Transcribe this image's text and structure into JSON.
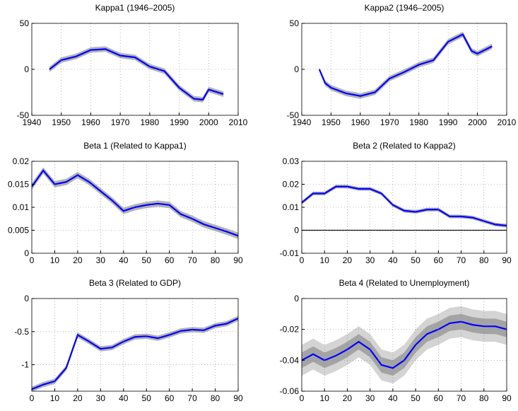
{
  "chart_data": [
    {
      "type": "line",
      "title": "Kappa1 (1946–2005)",
      "x": [
        1946,
        1950,
        1955,
        1960,
        1965,
        1970,
        1975,
        1980,
        1985,
        1990,
        1995,
        1998,
        2000,
        2005
      ],
      "series": [
        {
          "color": "#0000ff",
          "values": [
            0,
            10,
            14,
            21,
            22,
            15,
            13,
            3,
            -2,
            -20,
            -32,
            -33,
            -22,
            -27
          ]
        }
      ],
      "bands": [
        {
          "color": "#b4b4b4",
          "lower": [
            -3,
            7,
            11,
            18,
            19,
            12,
            10,
            0,
            -5,
            -23,
            -35,
            -36,
            -25,
            -30
          ],
          "upper": [
            3,
            13,
            17,
            24,
            25,
            18,
            16,
            6,
            1,
            -17,
            -29,
            -30,
            -19,
            -24
          ]
        }
      ],
      "xlim": [
        1940,
        2010
      ],
      "xticks": [
        1940,
        1950,
        1960,
        1970,
        1980,
        1990,
        2000,
        2010
      ],
      "ylim": [
        -50,
        50
      ],
      "yticks": [
        -50,
        0,
        50
      ],
      "grid": true
    },
    {
      "type": "line",
      "title": "Kappa2 (1946–2005)",
      "x": [
        1946,
        1948,
        1950,
        1955,
        1960,
        1965,
        1970,
        1975,
        1980,
        1985,
        1990,
        1995,
        1998,
        2000,
        2005
      ],
      "series": [
        {
          "color": "#0000ff",
          "values": [
            0,
            -15,
            -20,
            -26,
            -29,
            -25,
            -10,
            -3,
            5,
            10,
            30,
            38,
            20,
            17,
            25
          ]
        }
      ],
      "bands": [
        {
          "color": "#b4b4b4",
          "lower": [
            -2,
            -18,
            -23,
            -29,
            -32,
            -28,
            -13,
            -6,
            2,
            7,
            27,
            35,
            17,
            14,
            22
          ],
          "upper": [
            2,
            -12,
            -17,
            -23,
            -26,
            -22,
            -7,
            0,
            8,
            13,
            33,
            41,
            23,
            20,
            28
          ]
        }
      ],
      "xlim": [
        1940,
        2010
      ],
      "xticks": [
        1940,
        1950,
        1960,
        1970,
        1980,
        1990,
        2000,
        2010
      ],
      "ylim": [
        -50,
        50
      ],
      "yticks": [
        -50,
        0,
        50
      ],
      "grid": true
    },
    {
      "type": "line",
      "title": "Beta 1 (Related to Kappa1)",
      "x": [
        0,
        5,
        10,
        15,
        20,
        25,
        30,
        35,
        40,
        45,
        50,
        55,
        60,
        65,
        70,
        75,
        80,
        85,
        90
      ],
      "series": [
        {
          "color": "#0000ff",
          "values": [
            0.0145,
            0.018,
            0.015,
            0.0155,
            0.017,
            0.0155,
            0.0135,
            0.0115,
            0.0092,
            0.01,
            0.0105,
            0.0108,
            0.0105,
            0.0085,
            0.0075,
            0.0063,
            0.0055,
            0.0047,
            0.0038
          ]
        }
      ],
      "bands": [
        {
          "color": "#b4b4b4",
          "lower": [
            0.0138,
            0.0173,
            0.0143,
            0.0148,
            0.0163,
            0.0148,
            0.0128,
            0.0108,
            0.0085,
            0.0093,
            0.0098,
            0.0101,
            0.0098,
            0.0078,
            0.0068,
            0.0056,
            0.0048,
            0.004,
            0.0031
          ],
          "upper": [
            0.0152,
            0.0187,
            0.0157,
            0.0162,
            0.0177,
            0.0162,
            0.0142,
            0.0122,
            0.0099,
            0.0107,
            0.0112,
            0.0115,
            0.0112,
            0.0092,
            0.0082,
            0.007,
            0.0062,
            0.0054,
            0.0045
          ]
        }
      ],
      "xlim": [
        0,
        90
      ],
      "xticks": [
        0,
        10,
        20,
        30,
        40,
        50,
        60,
        70,
        80,
        90
      ],
      "ylim": [
        0,
        0.02
      ],
      "yticks": [
        0,
        0.005,
        0.01,
        0.015,
        0.02
      ],
      "grid": true
    },
    {
      "type": "line",
      "title": "Beta 2 (Related to Kappa2)",
      "x": [
        0,
        5,
        10,
        15,
        20,
        25,
        30,
        35,
        40,
        45,
        50,
        55,
        60,
        65,
        70,
        75,
        80,
        85,
        90
      ],
      "series": [
        {
          "color": "#0000ff",
          "values": [
            0.012,
            0.016,
            0.016,
            0.019,
            0.019,
            0.018,
            0.018,
            0.016,
            0.011,
            0.0085,
            0.008,
            0.009,
            0.009,
            0.006,
            0.006,
            0.0055,
            0.004,
            0.0025,
            0.002
          ]
        }
      ],
      "bands": [
        {
          "color": "#b4b4b4",
          "lower": [
            0.0112,
            0.0152,
            0.0152,
            0.0182,
            0.0182,
            0.0172,
            0.0172,
            0.0152,
            0.0102,
            0.0077,
            0.0072,
            0.0082,
            0.0082,
            0.0052,
            0.0052,
            0.0047,
            0.0032,
            0.0017,
            0.0012
          ],
          "upper": [
            0.0128,
            0.0168,
            0.0168,
            0.0198,
            0.0198,
            0.0188,
            0.0188,
            0.0168,
            0.0118,
            0.0093,
            0.0088,
            0.0098,
            0.0098,
            0.0068,
            0.0068,
            0.0063,
            0.0048,
            0.0033,
            0.0028
          ]
        }
      ],
      "xlim": [
        0,
        90
      ],
      "xticks": [
        0,
        10,
        20,
        30,
        40,
        50,
        60,
        70,
        80,
        90
      ],
      "ylim": [
        -0.01,
        0.03
      ],
      "yticks": [
        -0.01,
        0,
        0.01,
        0.02,
        0.03
      ],
      "grid": true,
      "zero_line": true
    },
    {
      "type": "line",
      "title": "Beta 3 (Related to GDP)",
      "x": [
        0,
        5,
        10,
        15,
        20,
        25,
        30,
        35,
        40,
        45,
        50,
        55,
        60,
        65,
        70,
        75,
        80,
        85,
        90
      ],
      "series": [
        {
          "color": "#0000ff",
          "values": [
            -1.37,
            -1.3,
            -1.25,
            -1.05,
            -0.55,
            -0.65,
            -0.76,
            -0.74,
            -0.65,
            -0.58,
            -0.57,
            -0.6,
            -0.55,
            -0.49,
            -0.47,
            -0.48,
            -0.41,
            -0.38,
            -0.3
          ]
        }
      ],
      "bands": [
        {
          "color": "#b4b4b4",
          "lower": [
            -1.41,
            -1.34,
            -1.29,
            -1.09,
            -0.59,
            -0.69,
            -0.8,
            -0.78,
            -0.69,
            -0.62,
            -0.61,
            -0.64,
            -0.59,
            -0.53,
            -0.51,
            -0.52,
            -0.45,
            -0.42,
            -0.34
          ],
          "upper": [
            -1.33,
            -1.26,
            -1.21,
            -1.01,
            -0.51,
            -0.61,
            -0.72,
            -0.7,
            -0.61,
            -0.54,
            -0.53,
            -0.56,
            -0.51,
            -0.45,
            -0.43,
            -0.44,
            -0.37,
            -0.34,
            -0.26
          ]
        }
      ],
      "xlim": [
        0,
        90
      ],
      "xticks": [
        0,
        10,
        20,
        30,
        40,
        50,
        60,
        70,
        80,
        90
      ],
      "ylim": [
        -1.4,
        0
      ],
      "yticks": [
        -1,
        -0.5,
        0
      ],
      "grid": true
    },
    {
      "type": "line",
      "title": "Beta 4 (Related to Unemployment)",
      "x": [
        0,
        5,
        10,
        15,
        20,
        25,
        30,
        35,
        40,
        45,
        50,
        55,
        60,
        65,
        70,
        75,
        80,
        85,
        90
      ],
      "series": [
        {
          "color": "#0000ff",
          "values": [
            -0.04,
            -0.036,
            -0.04,
            -0.037,
            -0.033,
            -0.028,
            -0.033,
            -0.043,
            -0.045,
            -0.04,
            -0.03,
            -0.023,
            -0.02,
            -0.016,
            -0.015,
            -0.017,
            -0.018,
            -0.018,
            -0.02
          ]
        }
      ],
      "bands": [
        {
          "color": "#d4d4d4",
          "lower": [
            -0.05,
            -0.046,
            -0.05,
            -0.047,
            -0.043,
            -0.038,
            -0.043,
            -0.053,
            -0.055,
            -0.05,
            -0.04,
            -0.033,
            -0.03,
            -0.026,
            -0.025,
            -0.027,
            -0.028,
            -0.028,
            -0.03
          ],
          "upper": [
            -0.03,
            -0.026,
            -0.03,
            -0.027,
            -0.023,
            -0.018,
            -0.023,
            -0.033,
            -0.035,
            -0.03,
            -0.02,
            -0.013,
            -0.01,
            -0.006,
            -0.005,
            -0.007,
            -0.008,
            -0.008,
            -0.01
          ]
        },
        {
          "color": "#a4a4a4",
          "lower": [
            -0.045,
            -0.041,
            -0.045,
            -0.042,
            -0.038,
            -0.033,
            -0.038,
            -0.048,
            -0.05,
            -0.045,
            -0.035,
            -0.028,
            -0.025,
            -0.021,
            -0.02,
            -0.022,
            -0.023,
            -0.023,
            -0.025
          ],
          "upper": [
            -0.035,
            -0.031,
            -0.035,
            -0.032,
            -0.028,
            -0.023,
            -0.028,
            -0.038,
            -0.04,
            -0.035,
            -0.025,
            -0.018,
            -0.015,
            -0.011,
            -0.01,
            -0.012,
            -0.013,
            -0.013,
            -0.015
          ]
        }
      ],
      "xlim": [
        0,
        90
      ],
      "xticks": [
        0,
        10,
        20,
        30,
        40,
        50,
        60,
        70,
        80,
        90
      ],
      "ylim": [
        -0.06,
        0
      ],
      "yticks": [
        -0.06,
        -0.04,
        -0.02,
        0
      ],
      "grid": true
    }
  ]
}
